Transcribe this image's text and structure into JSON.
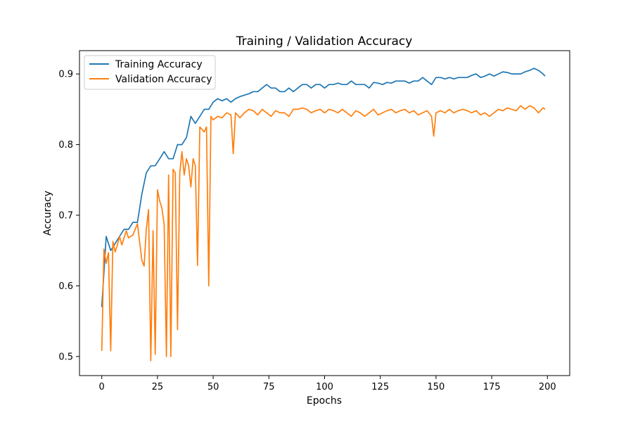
{
  "chart_data": {
    "type": "line",
    "title": "Training / Validation Accuracy",
    "xlabel": "Epochs",
    "ylabel": "Accuracy",
    "xlim": [
      -10,
      210
    ],
    "ylim": [
      0.473,
      0.933
    ],
    "xticks": [
      0,
      25,
      50,
      75,
      100,
      125,
      150,
      175,
      200
    ],
    "yticks": [
      0.5,
      0.6,
      0.7,
      0.8,
      0.9
    ],
    "xtick_labels": [
      "0",
      "25",
      "50",
      "75",
      "100",
      "125",
      "150",
      "175",
      "200"
    ],
    "ytick_labels": [
      "0.5",
      "0.6",
      "0.7",
      "0.8",
      "0.9"
    ],
    "grid": false,
    "legend_position": "top-left",
    "series": [
      {
        "name": "Training Accuracy",
        "color": "#1f77b4",
        "x": [
          0,
          2,
          4,
          6,
          8,
          10,
          12,
          14,
          16,
          18,
          20,
          22,
          24,
          26,
          28,
          30,
          32,
          34,
          36,
          38,
          40,
          42,
          44,
          46,
          48,
          50,
          52,
          54,
          56,
          58,
          60,
          62,
          64,
          66,
          68,
          70,
          72,
          74,
          76,
          78,
          80,
          82,
          84,
          86,
          88,
          90,
          92,
          94,
          96,
          98,
          100,
          102,
          104,
          106,
          108,
          110,
          112,
          114,
          116,
          118,
          120,
          122,
          124,
          126,
          128,
          130,
          132,
          134,
          136,
          138,
          140,
          142,
          144,
          146,
          148,
          150,
          152,
          154,
          156,
          158,
          160,
          162,
          164,
          166,
          168,
          170,
          172,
          174,
          176,
          178,
          180,
          182,
          184,
          186,
          188,
          190,
          192,
          194,
          196,
          198,
          199
        ],
        "y": [
          0.57,
          0.67,
          0.65,
          0.66,
          0.67,
          0.68,
          0.68,
          0.69,
          0.69,
          0.73,
          0.76,
          0.77,
          0.77,
          0.78,
          0.79,
          0.78,
          0.78,
          0.8,
          0.8,
          0.81,
          0.84,
          0.83,
          0.84,
          0.85,
          0.85,
          0.86,
          0.865,
          0.862,
          0.865,
          0.86,
          0.865,
          0.868,
          0.87,
          0.872,
          0.875,
          0.875,
          0.88,
          0.885,
          0.88,
          0.88,
          0.875,
          0.875,
          0.88,
          0.875,
          0.88,
          0.885,
          0.885,
          0.88,
          0.885,
          0.885,
          0.88,
          0.885,
          0.885,
          0.887,
          0.885,
          0.885,
          0.89,
          0.885,
          0.885,
          0.885,
          0.88,
          0.888,
          0.887,
          0.885,
          0.888,
          0.887,
          0.89,
          0.89,
          0.89,
          0.887,
          0.89,
          0.89,
          0.895,
          0.89,
          0.885,
          0.895,
          0.895,
          0.893,
          0.895,
          0.893,
          0.895,
          0.895,
          0.895,
          0.898,
          0.9,
          0.895,
          0.897,
          0.9,
          0.897,
          0.9,
          0.903,
          0.902,
          0.9,
          0.9,
          0.9,
          0.903,
          0.905,
          0.908,
          0.905,
          0.9,
          0.897
        ]
      },
      {
        "name": "Validation Accuracy",
        "color": "#ff7f0e",
        "x": [
          0,
          1,
          2,
          3,
          4,
          5,
          6,
          7,
          8,
          9,
          10,
          11,
          12,
          14,
          16,
          18,
          19,
          20,
          21,
          22,
          23,
          24,
          25,
          26,
          27,
          28,
          29,
          30,
          31,
          32,
          33,
          34,
          35,
          36,
          37,
          38,
          39,
          40,
          41,
          42,
          43,
          44,
          46,
          47,
          48,
          49,
          50,
          52,
          54,
          56,
          58,
          59,
          60,
          62,
          64,
          66,
          68,
          70,
          72,
          74,
          76,
          78,
          80,
          82,
          84,
          86,
          88,
          90,
          92,
          94,
          96,
          98,
          100,
          102,
          104,
          106,
          108,
          110,
          112,
          114,
          116,
          118,
          120,
          122,
          124,
          126,
          128,
          130,
          132,
          134,
          136,
          138,
          140,
          142,
          144,
          146,
          148,
          149,
          150,
          152,
          154,
          156,
          158,
          160,
          162,
          164,
          166,
          168,
          170,
          172,
          174,
          176,
          178,
          180,
          182,
          184,
          186,
          188,
          190,
          192,
          194,
          196,
          198,
          199
        ],
        "y": [
          0.508,
          0.652,
          0.632,
          0.647,
          0.508,
          0.663,
          0.648,
          0.658,
          0.67,
          0.658,
          0.668,
          0.678,
          0.668,
          0.672,
          0.688,
          0.636,
          0.628,
          0.68,
          0.708,
          0.494,
          0.678,
          0.503,
          0.736,
          0.72,
          0.71,
          0.687,
          0.5,
          0.757,
          0.5,
          0.765,
          0.76,
          0.538,
          0.76,
          0.79,
          0.757,
          0.78,
          0.77,
          0.74,
          0.78,
          0.77,
          0.629,
          0.825,
          0.818,
          0.825,
          0.6,
          0.84,
          0.835,
          0.84,
          0.838,
          0.845,
          0.842,
          0.787,
          0.845,
          0.838,
          0.845,
          0.85,
          0.848,
          0.842,
          0.85,
          0.845,
          0.84,
          0.848,
          0.845,
          0.845,
          0.84,
          0.85,
          0.85,
          0.852,
          0.85,
          0.845,
          0.848,
          0.85,
          0.845,
          0.85,
          0.848,
          0.845,
          0.85,
          0.845,
          0.84,
          0.848,
          0.845,
          0.84,
          0.845,
          0.85,
          0.842,
          0.845,
          0.848,
          0.85,
          0.845,
          0.848,
          0.85,
          0.845,
          0.848,
          0.842,
          0.845,
          0.848,
          0.84,
          0.812,
          0.845,
          0.848,
          0.845,
          0.85,
          0.845,
          0.848,
          0.85,
          0.848,
          0.845,
          0.848,
          0.842,
          0.845,
          0.84,
          0.845,
          0.85,
          0.848,
          0.852,
          0.85,
          0.848,
          0.855,
          0.85,
          0.855,
          0.852,
          0.845,
          0.852,
          0.85
        ]
      }
    ]
  }
}
